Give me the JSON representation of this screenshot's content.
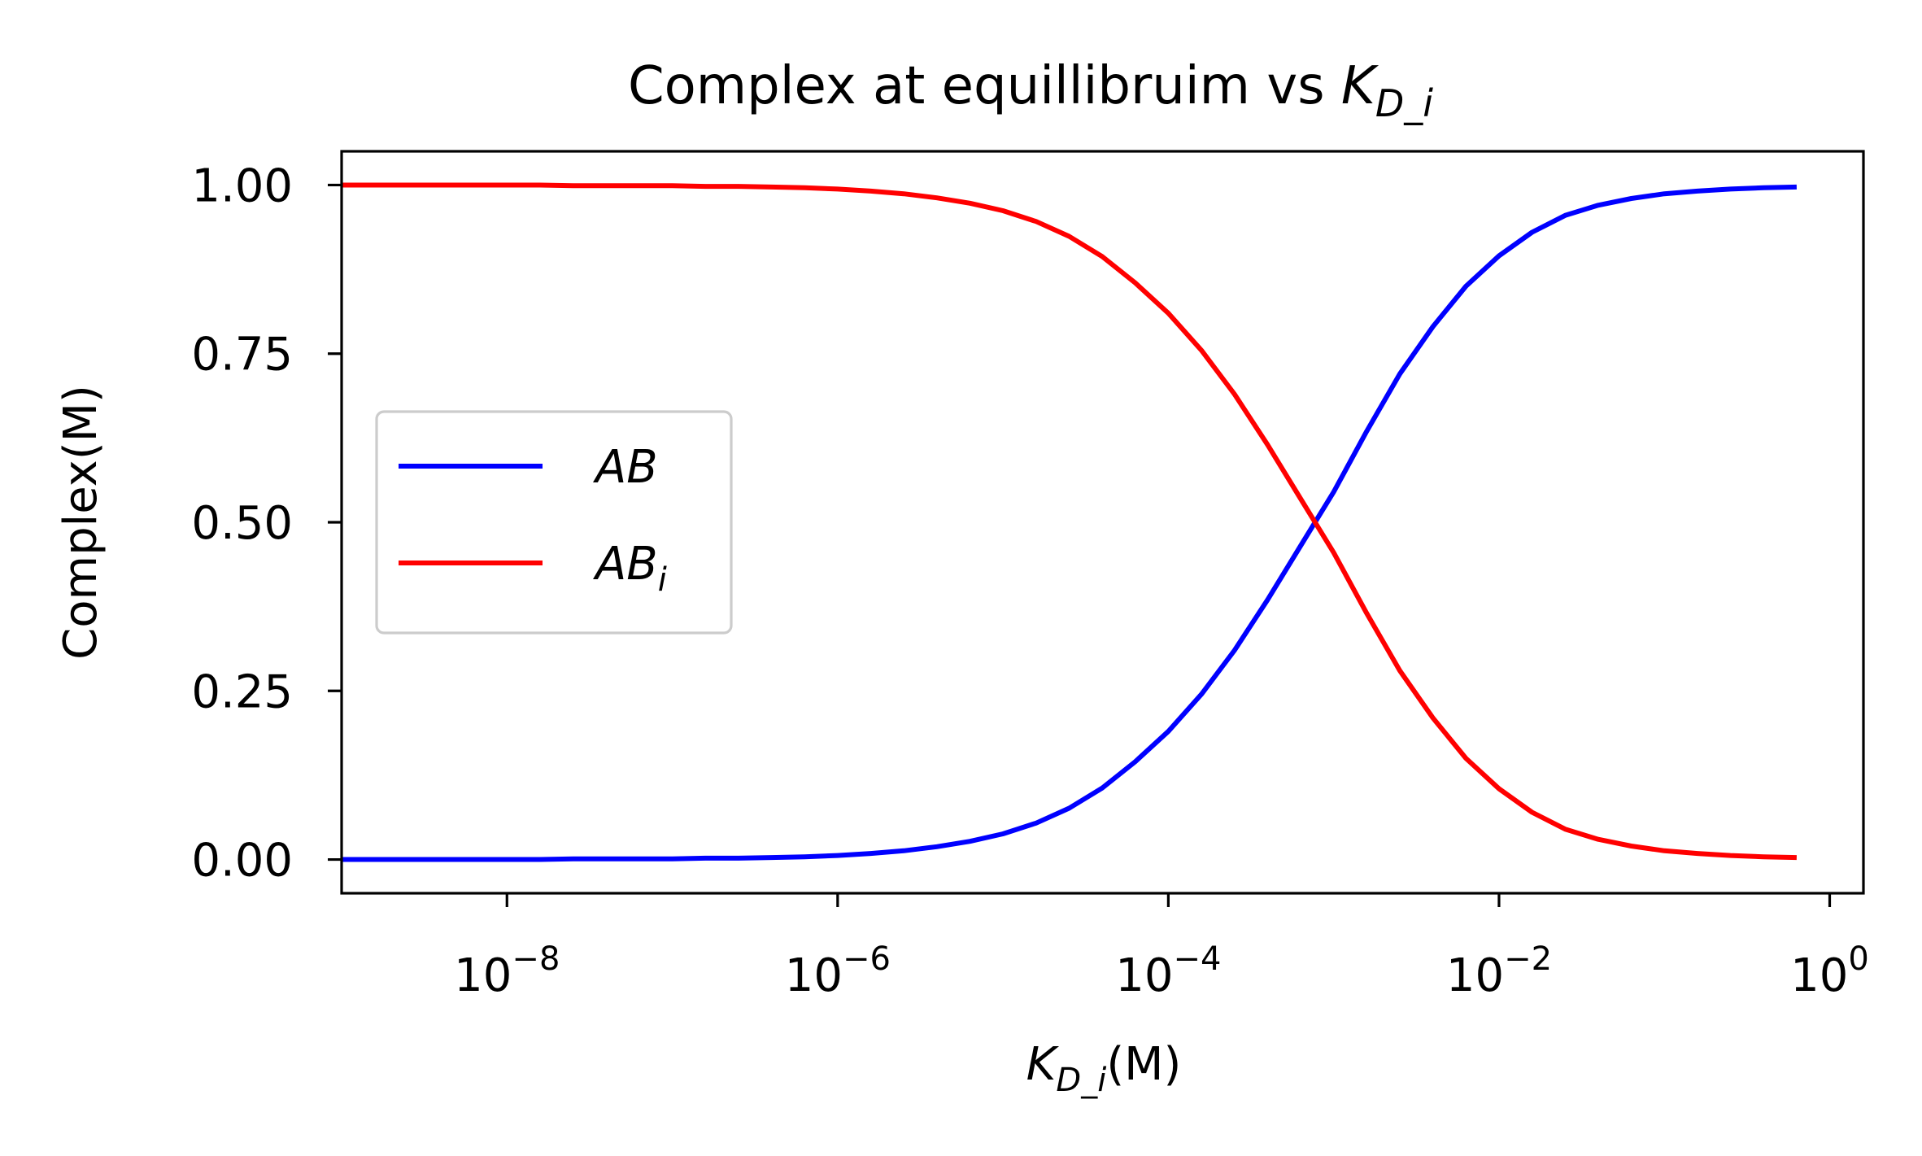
{
  "chart_data": {
    "type": "line",
    "title": "Complex at equillibruim vs ",
    "title_math": {
      "base": "K",
      "sub": "D_i"
    },
    "xlabel_math": {
      "base": "K",
      "sub": "D_i"
    },
    "xlabel_suffix": "(M)",
    "ylabel": "Complex(M)",
    "xscale": "log",
    "xlim": [
      1e-09,
      1.6
    ],
    "ylim": [
      -0.05,
      1.05
    ],
    "x_ticks": [
      {
        "value": 1e-08,
        "base": "10",
        "exp": "−8"
      },
      {
        "value": 1e-06,
        "base": "10",
        "exp": "−6"
      },
      {
        "value": 0.0001,
        "base": "10",
        "exp": "−4"
      },
      {
        "value": 0.01,
        "base": "10",
        "exp": "−2"
      },
      {
        "value": 1,
        "base": "10",
        "exp": "0"
      }
    ],
    "y_ticks": [
      {
        "value": 0.0,
        "label": "0.00"
      },
      {
        "value": 0.25,
        "label": "0.25"
      },
      {
        "value": 0.5,
        "label": "0.50"
      },
      {
        "value": 0.75,
        "label": "0.75"
      },
      {
        "value": 1.0,
        "label": "1.00"
      }
    ],
    "grid": false,
    "legend_position": "center-left",
    "x": [
      1e-09,
      1.585e-09,
      2.512e-09,
      3.981e-09,
      6.31e-09,
      1e-08,
      1.585e-08,
      2.512e-08,
      3.981e-08,
      6.31e-08,
      1e-07,
      1.585e-07,
      2.512e-07,
      3.981e-07,
      6.31e-07,
      1e-06,
      1.585e-06,
      2.512e-06,
      3.981e-06,
      6.31e-06,
      1e-05,
      1.585e-05,
      2.512e-05,
      3.981e-05,
      6.31e-05,
      0.0001,
      0.0001585,
      0.0002512,
      0.0003981,
      0.000631,
      0.001,
      0.001585,
      0.002512,
      0.003981,
      0.00631,
      0.01,
      0.01585,
      0.02512,
      0.03981,
      0.0631,
      0.1,
      0.1585,
      0.2512,
      0.3981,
      0.631
    ],
    "series": [
      {
        "name": "AB",
        "sub": "",
        "color": "#0000ff",
        "values": [
          0.0,
          0.0,
          0.0,
          0.0,
          0.0,
          0.0,
          0.0,
          0.001,
          0.001,
          0.001,
          0.001,
          0.002,
          0.002,
          0.003,
          0.004,
          0.006,
          0.009,
          0.013,
          0.019,
          0.027,
          0.038,
          0.054,
          0.076,
          0.106,
          0.145,
          0.19,
          0.245,
          0.31,
          0.385,
          0.465,
          0.545,
          0.635,
          0.72,
          0.79,
          0.85,
          0.895,
          0.93,
          0.955,
          0.97,
          0.98,
          0.987,
          0.991,
          0.994,
          0.996,
          0.997
        ]
      },
      {
        "name": "AB",
        "sub": "i",
        "color": "#ff0000",
        "values": [
          1.0,
          1.0,
          1.0,
          1.0,
          1.0,
          1.0,
          1.0,
          0.999,
          0.999,
          0.999,
          0.999,
          0.998,
          0.998,
          0.997,
          0.996,
          0.994,
          0.991,
          0.987,
          0.981,
          0.973,
          0.962,
          0.946,
          0.924,
          0.894,
          0.855,
          0.81,
          0.755,
          0.69,
          0.615,
          0.535,
          0.455,
          0.365,
          0.28,
          0.21,
          0.15,
          0.105,
          0.07,
          0.045,
          0.03,
          0.02,
          0.013,
          0.009,
          0.006,
          0.004,
          0.003
        ]
      }
    ]
  }
}
